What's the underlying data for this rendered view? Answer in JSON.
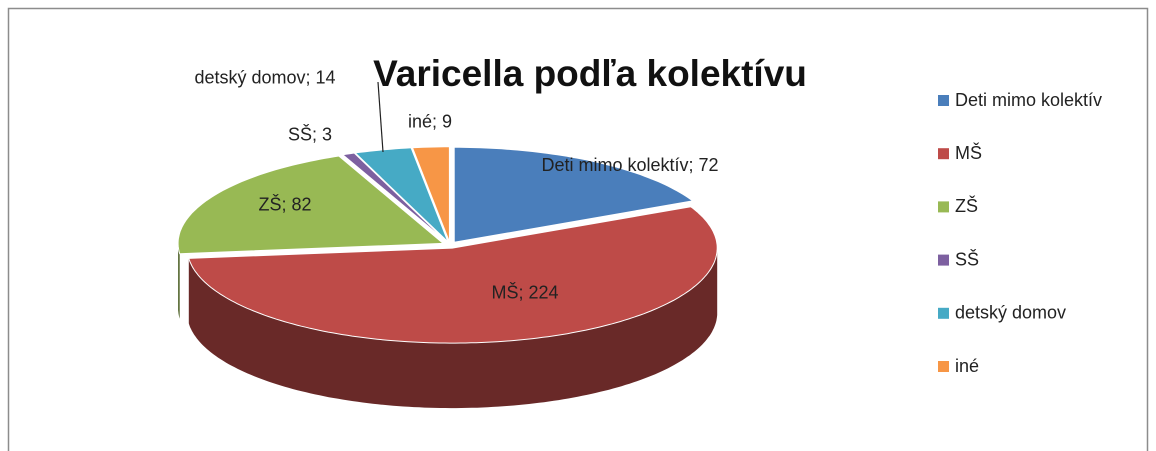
{
  "chart_data": {
    "type": "pie3d",
    "title": "Varicella podľa kolektívu",
    "categories": [
      "Deti mimo kolektív",
      "MŠ",
      "ZŠ",
      "SŠ",
      "detský domov",
      "iné"
    ],
    "values": [
      72,
      224,
      82,
      3,
      14,
      9
    ],
    "value_labels": [
      "Deti mimo kolektív; 72",
      "MŠ; 224",
      "ZŠ; 82",
      "SŠ; 3",
      "detský domov; 14",
      "iné; 9"
    ],
    "colors": [
      "#4a7ebb",
      "#be4b48",
      "#98b954",
      "#7d60a0",
      "#46aac5",
      "#f79646"
    ],
    "legend": "right"
  }
}
